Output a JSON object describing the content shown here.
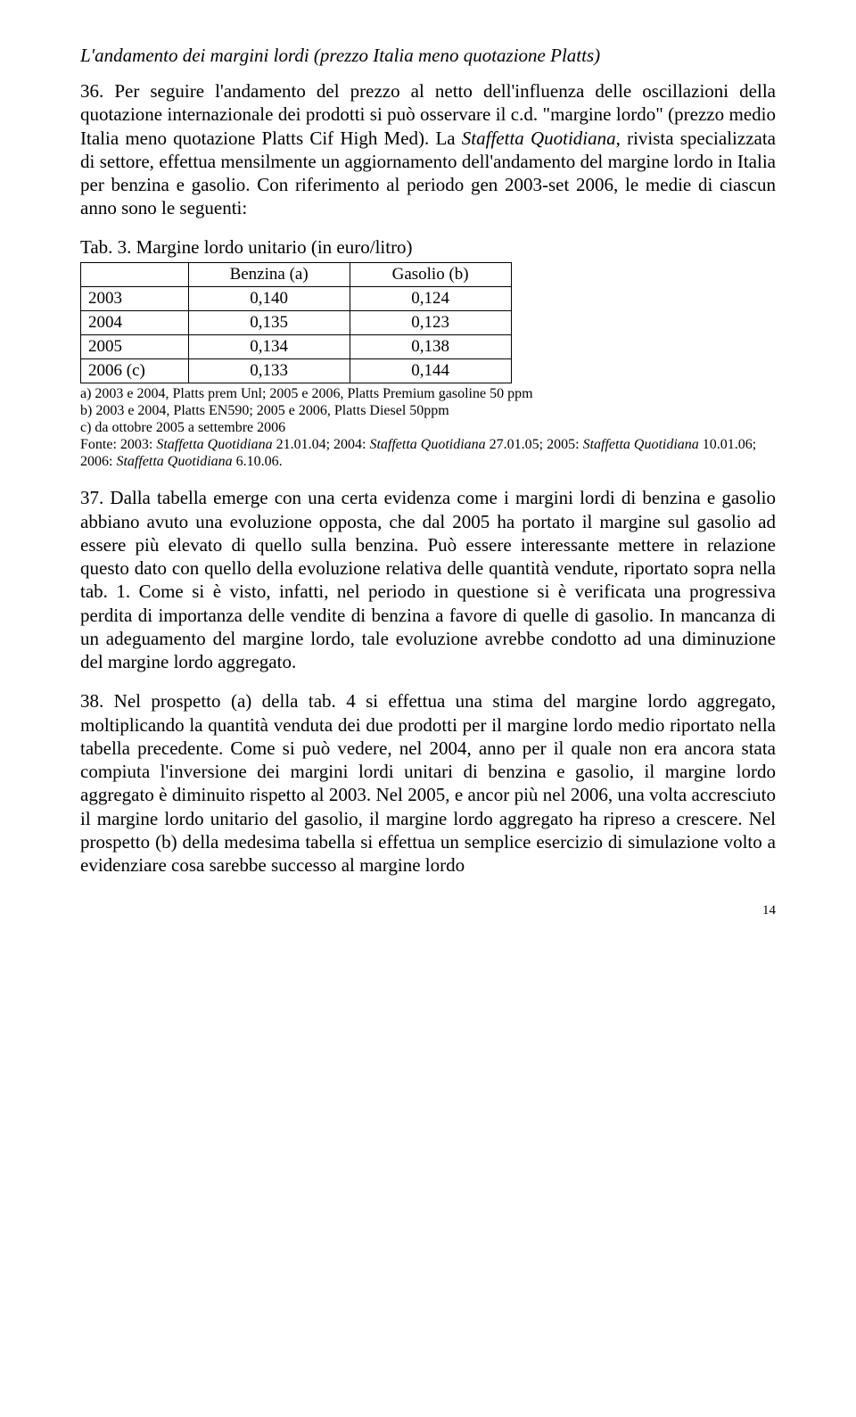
{
  "section_title": "L'andamento dei margini lordi (prezzo Italia meno quotazione Platts)",
  "para1": "36. Per seguire l'andamento del prezzo al netto dell'influenza delle oscillazioni della quotazione internazionale dei prodotti si può osservare il c.d. \"margine lordo\" (prezzo medio Italia meno quotazione Platts Cif High Med). La ",
  "para1_italic": "Staffetta Quotidiana",
  "para1_cont": ", rivista specializzata di settore, effettua mensilmente un aggiornamento dell'andamento del margine lordo in Italia per benzina e gasolio. Con riferimento al periodo gen 2003-set 2006, le medie di ciascun anno sono le seguenti:",
  "table": {
    "caption": "Tab. 3. Margine lordo unitario (in euro/litro)",
    "headers": [
      "",
      "Benzina (a)",
      "Gasolio (b)"
    ],
    "rows": [
      [
        "2003",
        "0,140",
        "0,124"
      ],
      [
        "2004",
        "0,135",
        "0,123"
      ],
      [
        "2005",
        "0,134",
        "0,138"
      ],
      [
        "2006 (c)",
        "0,133",
        "0,144"
      ]
    ]
  },
  "footnotes": {
    "a": "a) 2003 e 2004, Platts prem Unl; 2005 e 2006, Platts Premium gasoline 50 ppm",
    "b": "b) 2003 e 2004, Platts EN590; 2005 e 2006, Platts Diesel 50ppm",
    "c": "c) da ottobre 2005 a settembre 2006",
    "fonte_pre": "Fonte: 2003: ",
    "fonte_i1": "Staffetta Quotidiana",
    "fonte_m1": " 21.01.04; 2004: ",
    "fonte_i2": "Staffetta Quotidiana",
    "fonte_m2": " 27.01.05; 2005: ",
    "fonte_i3": "Staffetta Quotidiana",
    "fonte_m3": " 10.01.06; 2006: ",
    "fonte_i4": "Staffetta Quotidiana",
    "fonte_m4": " 6.10.06."
  },
  "para2": "37. Dalla tabella emerge con una certa evidenza come i margini lordi di benzina e gasolio abbiano avuto una evoluzione opposta, che dal 2005 ha portato il margine sul gasolio ad essere più elevato di quello sulla benzina. Può essere interessante mettere in relazione questo dato con quello della evoluzione relativa delle quantità vendute, riportato sopra nella tab. 1. Come si è visto, infatti, nel periodo in questione si è verificata una progressiva perdita di importanza delle vendite di benzina a favore di quelle di gasolio. In mancanza di un adeguamento del margine lordo, tale evoluzione avrebbe condotto ad una diminuzione del margine lordo aggregato.",
  "para3": "38. Nel prospetto (a) della tab. 4 si effettua una stima del margine lordo aggregato, moltiplicando la quantità venduta dei due prodotti per il margine lordo medio riportato nella tabella precedente. Come si può vedere, nel 2004, anno per il quale non era ancora stata compiuta l'inversione dei margini lordi unitari di benzina e gasolio, il margine lordo aggregato è diminuito rispetto al 2003. Nel 2005, e ancor più nel 2006, una volta accresciuto il margine lordo unitario del gasolio, il margine lordo aggregato ha ripreso a crescere. Nel prospetto (b) della medesima tabella si effettua un semplice esercizio di simulazione volto a evidenziare cosa sarebbe successo al margine lordo",
  "page_number": "14"
}
